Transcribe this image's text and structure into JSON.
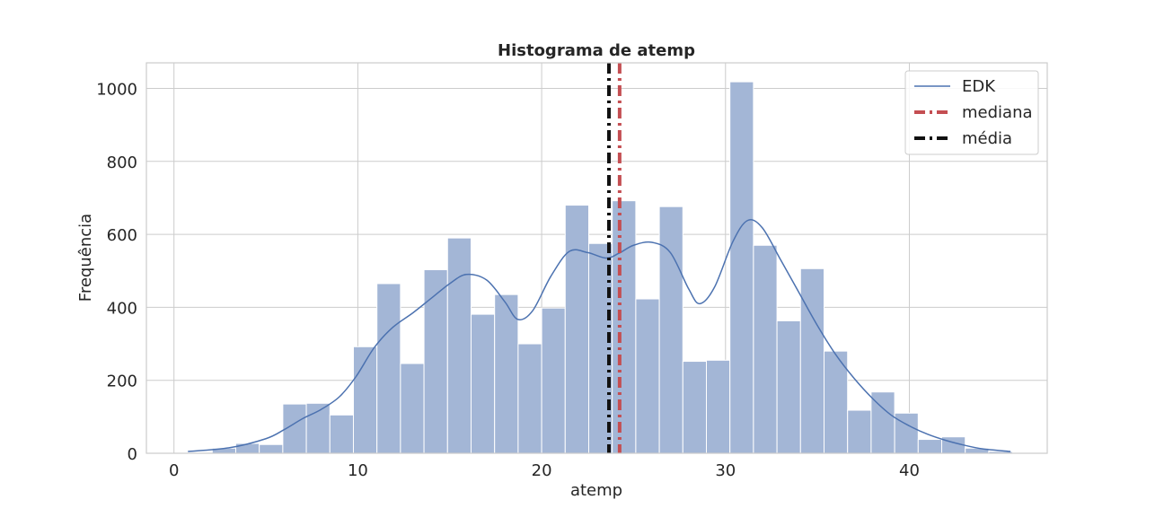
{
  "chart_data": {
    "type": "bar",
    "title": "Histograma de atemp",
    "xlabel": "atemp",
    "ylabel": "Frequência",
    "xlim": [
      -1.5,
      47.5
    ],
    "ylim": [
      0,
      1070
    ],
    "xticks": [
      0,
      10,
      20,
      30,
      40
    ],
    "yticks": [
      0,
      200,
      400,
      600,
      800,
      1000
    ],
    "grid": true,
    "legend_position": "top-right",
    "bin_width": 1.28,
    "bins": [
      {
        "x0": 2.08,
        "value": 14
      },
      {
        "x0": 3.36,
        "value": 27
      },
      {
        "x0": 4.64,
        "value": 24
      },
      {
        "x0": 5.92,
        "value": 135
      },
      {
        "x0": 7.2,
        "value": 137
      },
      {
        "x0": 8.48,
        "value": 105
      },
      {
        "x0": 9.76,
        "value": 292
      },
      {
        "x0": 11.04,
        "value": 465
      },
      {
        "x0": 12.32,
        "value": 246
      },
      {
        "x0": 13.6,
        "value": 503
      },
      {
        "x0": 14.88,
        "value": 590
      },
      {
        "x0": 16.16,
        "value": 381
      },
      {
        "x0": 17.44,
        "value": 435
      },
      {
        "x0": 18.72,
        "value": 300
      },
      {
        "x0": 20.0,
        "value": 398
      },
      {
        "x0": 21.28,
        "value": 680
      },
      {
        "x0": 22.56,
        "value": 575
      },
      {
        "x0": 23.84,
        "value": 692
      },
      {
        "x0": 25.12,
        "value": 423
      },
      {
        "x0": 26.4,
        "value": 676
      },
      {
        "x0": 27.68,
        "value": 252
      },
      {
        "x0": 28.96,
        "value": 255
      },
      {
        "x0": 30.24,
        "value": 1018
      },
      {
        "x0": 31.52,
        "value": 570
      },
      {
        "x0": 32.8,
        "value": 363
      },
      {
        "x0": 34.08,
        "value": 506
      },
      {
        "x0": 35.36,
        "value": 280
      },
      {
        "x0": 36.64,
        "value": 118
      },
      {
        "x0": 37.92,
        "value": 168
      },
      {
        "x0": 39.2,
        "value": 110
      },
      {
        "x0": 40.48,
        "value": 38
      },
      {
        "x0": 41.76,
        "value": 45
      },
      {
        "x0": 43.04,
        "value": 14
      },
      {
        "x0": 44.32,
        "value": 5
      }
    ],
    "kde": {
      "name": "EDK",
      "color": "#4c72b0",
      "points": [
        [
          0.76,
          5
        ],
        [
          3,
          15
        ],
        [
          5,
          40
        ],
        [
          6,
          65
        ],
        [
          7,
          95
        ],
        [
          8,
          120
        ],
        [
          9,
          155
        ],
        [
          9.9,
          210
        ],
        [
          10.9,
          290
        ],
        [
          11.9,
          345
        ],
        [
          13,
          385
        ],
        [
          14,
          425
        ],
        [
          15,
          465
        ],
        [
          15.9,
          490
        ],
        [
          17,
          475
        ],
        [
          18,
          415
        ],
        [
          18.7,
          367
        ],
        [
          19.5,
          390
        ],
        [
          20.5,
          485
        ],
        [
          21.5,
          553
        ],
        [
          22.5,
          550
        ],
        [
          23.5,
          535
        ],
        [
          24.2,
          548
        ],
        [
          25,
          570
        ],
        [
          26,
          578
        ],
        [
          27,
          550
        ],
        [
          28,
          450
        ],
        [
          28.6,
          410
        ],
        [
          29.4,
          455
        ],
        [
          30.4,
          580
        ],
        [
          31.2,
          638
        ],
        [
          32,
          618
        ],
        [
          33,
          530
        ],
        [
          34,
          440
        ],
        [
          35,
          350
        ],
        [
          36,
          270
        ],
        [
          37,
          205
        ],
        [
          38,
          150
        ],
        [
          39,
          105
        ],
        [
          40,
          75
        ],
        [
          41,
          52
        ],
        [
          42,
          35
        ],
        [
          43,
          22
        ],
        [
          44,
          12
        ],
        [
          45.5,
          5
        ]
      ]
    },
    "vlines": [
      {
        "name": "mediana",
        "x": 24.24,
        "color": "#c44e52",
        "style": "dashdot"
      },
      {
        "name": "média",
        "x": 23.66,
        "color": "#111111",
        "style": "dashdot"
      }
    ],
    "legend": [
      "EDK",
      "mediana",
      "média"
    ]
  }
}
